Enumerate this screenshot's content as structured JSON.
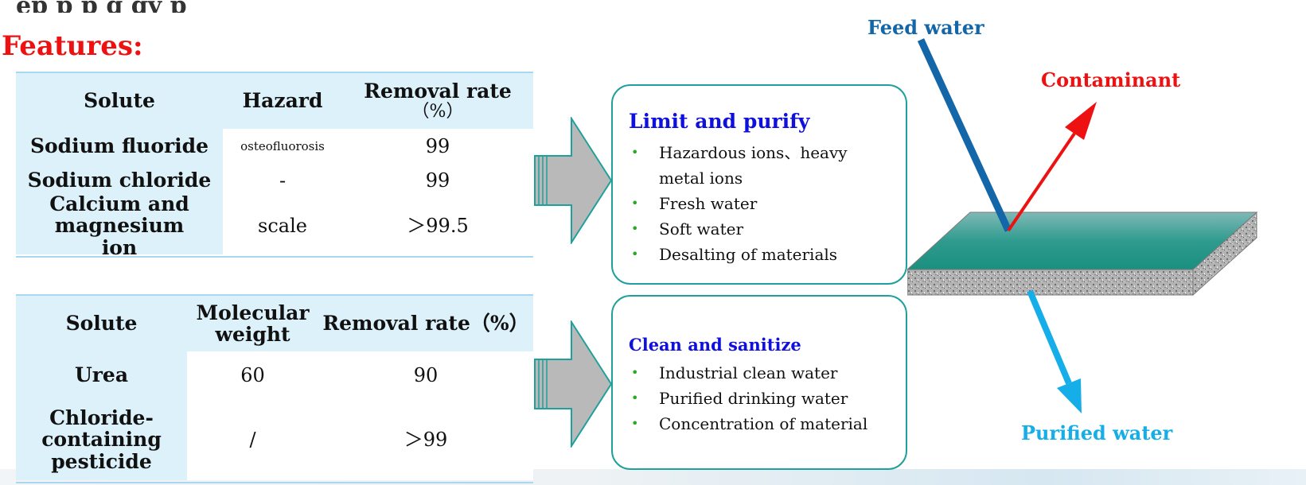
{
  "top_line": "ep  p  p  g  gy  p",
  "features_title": "Features:",
  "table1": {
    "headers": [
      "Solute",
      "Hazard",
      "Removal rate",
      "（%）"
    ],
    "rows": [
      {
        "solute": "Sodium fluoride",
        "hazard": "osteofluorosis",
        "rate": "99"
      },
      {
        "solute": "Sodium chloride",
        "hazard": "-",
        "rate": "99"
      },
      {
        "solute": "Calcium and magnesium ion",
        "hazard": "scale",
        "rate": "＞99.5"
      }
    ]
  },
  "table2": {
    "headers": [
      "Solute",
      "Molecular weight",
      "Removal rate（%）"
    ],
    "rows": [
      {
        "solute": "Urea",
        "mw": "60",
        "rate": "90"
      },
      {
        "solute": "Chloride-containing pesticide",
        "mw": "/",
        "rate": "＞99"
      }
    ]
  },
  "box1": {
    "title": "Limit and purify",
    "items": [
      "Hazardous ions、heavy metal ions",
      "Fresh water",
      "Soft water",
      "Desalting of materials"
    ]
  },
  "box2": {
    "title": "Clean and sanitize",
    "items": [
      "Industrial clean water",
      "Purified drinking water",
      "Concentration of material"
    ]
  },
  "diagram": {
    "feed_label": "Feed water",
    "contaminant_label": "Contaminant",
    "purified_label": "Purified water",
    "colors": {
      "feed": "#1366a8",
      "contaminant": "#ee1111",
      "purified": "#15aee8",
      "membrane": "#1f9c8c"
    }
  },
  "colors": {
    "accent": "#ee1111",
    "box_border": "#20a09a",
    "box_title": "#1010dd",
    "table_shade": "#dcf1fa"
  }
}
